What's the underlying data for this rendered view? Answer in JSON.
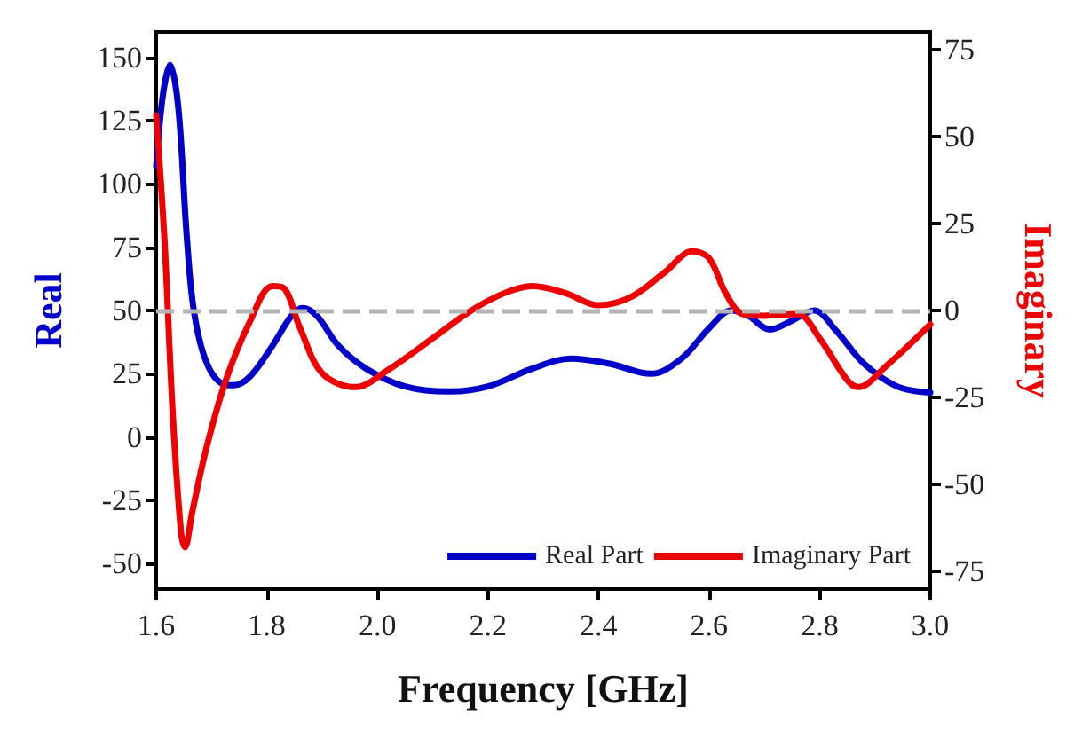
{
  "chart_data": {
    "type": "line",
    "xlabel": "Frequency [GHz]",
    "ylabel": "Real",
    "y2label": "Imaginary",
    "xlim": [
      1.6,
      3.0
    ],
    "xticks": [
      {
        "value": 1.6,
        "label": "1.6"
      },
      {
        "value": 1.8,
        "label": "1.8"
      },
      {
        "value": 2.0,
        "label": "2.0"
      },
      {
        "value": 2.2,
        "label": "2.2"
      },
      {
        "value": 2.4,
        "label": "2.4"
      },
      {
        "value": 2.6,
        "label": "2.6"
      },
      {
        "value": 2.8,
        "label": "2.8"
      },
      {
        "value": 3.0,
        "label": "3.0"
      }
    ],
    "ylim": [
      -60,
      160
    ],
    "yticks": [
      -50,
      -25,
      0,
      25,
      50,
      75,
      100,
      125,
      150
    ],
    "y2lim": [
      -80,
      80
    ],
    "y2ticks": [
      -75,
      -50,
      -25,
      0,
      25,
      50,
      75
    ],
    "grid": false,
    "legend": "bottom right",
    "marker": "none",
    "line_style": "solid",
    "ref_lines": [
      {
        "axis": "y",
        "value": 50,
        "color": "#b4b4b4",
        "line_style": "dashed"
      }
    ],
    "series": [
      {
        "name": "Real Part",
        "color": "#0000c8",
        "x": [
          1.6,
          1.612,
          1.625,
          1.64,
          1.655,
          1.668,
          1.69,
          1.72,
          1.74,
          1.77,
          1.81,
          1.845,
          1.865,
          1.89,
          1.93,
          1.98,
          2.05,
          2.13,
          2.2,
          2.28,
          2.35,
          2.42,
          2.495,
          2.55,
          2.6,
          2.64,
          2.67,
          2.71,
          2.75,
          2.79,
          2.83,
          2.88,
          2.94,
          3.0
        ],
        "values": [
          107,
          135,
          147,
          130,
          80,
          50,
          30,
          21,
          20.5,
          24,
          36,
          48,
          51,
          48,
          36,
          27,
          20,
          18,
          20,
          27,
          31,
          29,
          25,
          31,
          43,
          50,
          48,
          42.5,
          46,
          50,
          42,
          29,
          20,
          17.6
        ]
      },
      {
        "name": "Imaginary Part",
        "color": "#ee0000",
        "axis": "y2",
        "x": [
          1.6,
          1.615,
          1.63,
          1.645,
          1.652,
          1.665,
          1.69,
          1.726,
          1.77,
          1.81,
          1.83,
          1.86,
          1.9,
          1.96,
          2.02,
          2.1,
          2.17,
          2.23,
          2.28,
          2.34,
          2.4,
          2.46,
          2.52,
          2.57,
          2.6,
          2.63,
          2.66,
          2.7,
          2.76,
          2.8,
          2.85,
          2.87,
          2.92,
          3.0
        ],
        "values": [
          56,
          20,
          -30,
          -64,
          -68,
          -58,
          -40,
          -20,
          -3,
          7,
          6.5,
          -5,
          -18,
          -22,
          -17,
          -8,
          0,
          5,
          7,
          5,
          1.5,
          4,
          11,
          17,
          15,
          5,
          -1,
          -1.5,
          -1,
          -8,
          -20,
          -22,
          -16,
          -4
        ]
      }
    ]
  }
}
